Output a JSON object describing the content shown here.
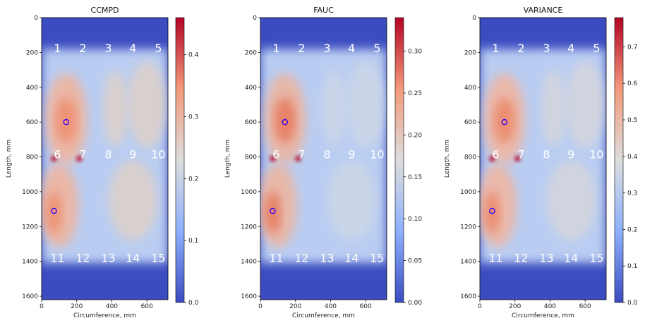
{
  "chart_data": [
    {
      "type": "heatmap",
      "title": "CCMPD",
      "xlabel": "Circumference, mm",
      "ylabel": "Length, mm",
      "xlim": [
        0,
        720
      ],
      "ylim": [
        1620,
        0
      ],
      "x_ticks": [
        "0",
        "200",
        "400",
        "600"
      ],
      "y_ticks": [
        "0",
        "200",
        "400",
        "600",
        "800",
        "1000",
        "1200",
        "1400",
        "1600"
      ],
      "colormap": "coolwarm",
      "colorbar_range": [
        0,
        0.46
      ],
      "colorbar_ticks": [
        "0.0",
        "0.1",
        "0.2",
        "0.3",
        "0.4"
      ],
      "markers": [
        {
          "x": 140,
          "y": 600
        },
        {
          "x": 70,
          "y": 1110
        }
      ]
    },
    {
      "type": "heatmap",
      "title": "FAUC",
      "xlabel": "Circumference, mm",
      "ylabel": "Length, mm",
      "xlim": [
        0,
        720
      ],
      "ylim": [
        1620,
        0
      ],
      "x_ticks": [
        "0",
        "200",
        "400",
        "600"
      ],
      "y_ticks": [
        "0",
        "200",
        "400",
        "600",
        "800",
        "1000",
        "1200",
        "1400",
        "1600"
      ],
      "colormap": "coolwarm",
      "colorbar_range": [
        0,
        0.34
      ],
      "colorbar_ticks": [
        "0.00",
        "0.05",
        "0.10",
        "0.15",
        "0.20",
        "0.25",
        "0.30"
      ],
      "markers": [
        {
          "x": 140,
          "y": 600
        },
        {
          "x": 70,
          "y": 1110
        }
      ]
    },
    {
      "type": "heatmap",
      "title": "VARIANCE",
      "xlabel": "Circumference, mm",
      "ylabel": "Length, mm",
      "xlim": [
        0,
        720
      ],
      "ylim": [
        1620,
        0
      ],
      "x_ticks": [
        "0",
        "200",
        "400",
        "600"
      ],
      "y_ticks": [
        "0",
        "200",
        "400",
        "600",
        "800",
        "1000",
        "1200",
        "1400",
        "1600"
      ],
      "colormap": "coolwarm",
      "colorbar_range": [
        0,
        0.78
      ],
      "colorbar_ticks": [
        "0.0",
        "0.1",
        "0.2",
        "0.3",
        "0.4",
        "0.5",
        "0.6",
        "0.7"
      ],
      "markers": [
        {
          "x": 140,
          "y": 600
        },
        {
          "x": 70,
          "y": 1110
        }
      ]
    }
  ],
  "sensors": [
    {
      "label": "1",
      "x": 90,
      "y": 170
    },
    {
      "label": "2",
      "x": 235,
      "y": 170
    },
    {
      "label": "3",
      "x": 380,
      "y": 170
    },
    {
      "label": "4",
      "x": 520,
      "y": 170
    },
    {
      "label": "5",
      "x": 665,
      "y": 170
    },
    {
      "label": "6",
      "x": 90,
      "y": 780
    },
    {
      "label": "7",
      "x": 235,
      "y": 780
    },
    {
      "label": "8",
      "x": 380,
      "y": 780
    },
    {
      "label": "9",
      "x": 520,
      "y": 780
    },
    {
      "label": "10",
      "x": 665,
      "y": 780
    },
    {
      "label": "11",
      "x": 90,
      "y": 1375
    },
    {
      "label": "12",
      "x": 235,
      "y": 1375
    },
    {
      "label": "13",
      "x": 380,
      "y": 1375
    },
    {
      "label": "14",
      "x": 520,
      "y": 1375
    },
    {
      "label": "15",
      "x": 665,
      "y": 1375
    }
  ]
}
